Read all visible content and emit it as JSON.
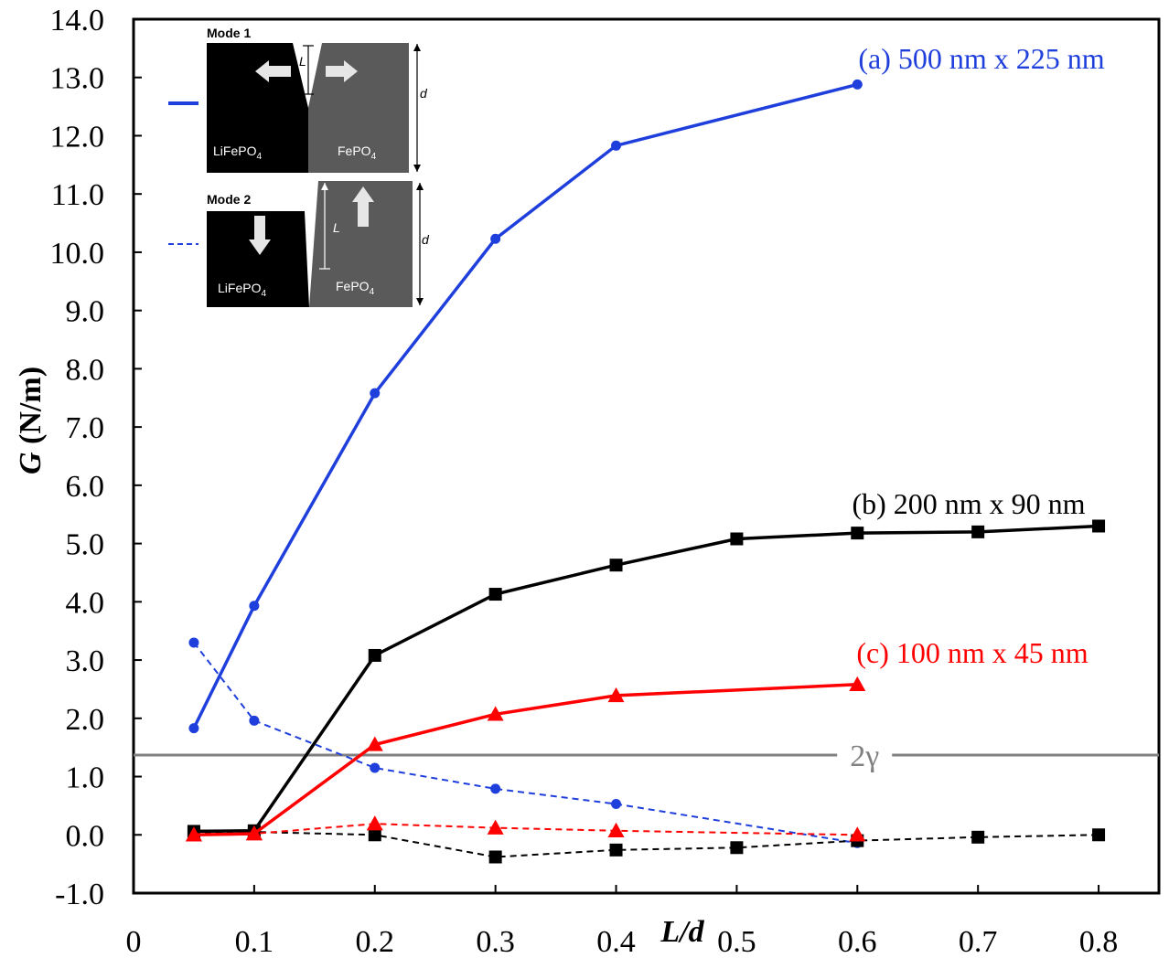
{
  "chart_data": {
    "type": "line",
    "title": "",
    "xlabel_italic": "L/d",
    "ylabel_italic": "G",
    "ylabel_units": " (N/m)",
    "xlim": [
      0,
      0.85
    ],
    "ylim": [
      -1.0,
      14.0
    ],
    "x_ticks": [
      "0",
      "0.1",
      "0.2",
      "0.3",
      "0.4",
      "0.5",
      "0.6",
      "0.7",
      "0.8"
    ],
    "y_ticks": [
      "-1.0",
      "0.0",
      "1.0",
      "2.0",
      "3.0",
      "4.0",
      "5.0",
      "6.0",
      "7.0",
      "8.0",
      "9.0",
      "10.0",
      "11.0",
      "12.0",
      "13.0",
      "14.0"
    ],
    "grid": false,
    "reference_line": {
      "label": "2γ",
      "value": 1.37,
      "color": "#808080"
    },
    "series": [
      {
        "name": "(a) 500 nm x 225 nm",
        "mode": "Mode 1",
        "color": "#1f3fdc",
        "marker": "circle",
        "dash": false,
        "x": [
          0.05,
          0.1,
          0.2,
          0.3,
          0.4,
          0.6
        ],
        "y": [
          1.83,
          3.93,
          7.58,
          10.23,
          11.83,
          12.88
        ]
      },
      {
        "name": "(a) 500 nm x 225 nm",
        "mode": "Mode 2",
        "color": "#1f3fdc",
        "marker": "circle",
        "dash": true,
        "x": [
          0.05,
          0.1,
          0.2,
          0.3,
          0.4,
          0.6
        ],
        "y": [
          3.3,
          1.96,
          1.15,
          0.79,
          0.53,
          -0.14
        ]
      },
      {
        "name": "(b) 200 nm x 90 nm",
        "mode": "Mode 1",
        "color": "#000000",
        "marker": "square",
        "dash": false,
        "x": [
          0.05,
          0.1,
          0.2,
          0.3,
          0.4,
          0.5,
          0.6,
          0.7,
          0.8
        ],
        "y": [
          0.06,
          0.07,
          3.08,
          4.13,
          4.63,
          5.08,
          5.18,
          5.2,
          5.3
        ]
      },
      {
        "name": "(b) 200 nm x 90 nm",
        "mode": "Mode 2",
        "color": "#000000",
        "marker": "square",
        "dash": true,
        "x": [
          0.05,
          0.1,
          0.2,
          0.3,
          0.4,
          0.5,
          0.6,
          0.7,
          0.8
        ],
        "y": [
          0.04,
          0.05,
          0.0,
          -0.38,
          -0.26,
          -0.22,
          -0.1,
          -0.04,
          0.0
        ]
      },
      {
        "name": "(c) 100 nm x 45 nm",
        "mode": "Mode 1",
        "color": "#ff0000",
        "marker": "triangle",
        "dash": false,
        "x": [
          0.05,
          0.1,
          0.2,
          0.3,
          0.4,
          0.6
        ],
        "y": [
          0.0,
          0.02,
          1.55,
          2.07,
          2.39,
          2.58
        ]
      },
      {
        "name": "(c) 100 nm x 45 nm",
        "mode": "Mode 2",
        "color": "#ff0000",
        "marker": "triangle",
        "dash": true,
        "x": [
          0.05,
          0.1,
          0.2,
          0.3,
          0.4,
          0.6
        ],
        "y": [
          0.0,
          0.02,
          0.19,
          0.12,
          0.07,
          0.0
        ]
      }
    ]
  },
  "labels": {
    "a": "(a) 500 nm x 225 nm",
    "b": "(b) 200 nm x 90 nm",
    "c": "(c) 100 nm x 45 nm"
  },
  "inset": {
    "mode1_title": "Mode 1",
    "mode2_title": "Mode 2",
    "left_phase": "LiFePO",
    "right_phase": "FePO",
    "subscript": "4",
    "length_symbol": "L",
    "depth_symbol": "d"
  },
  "colors": {
    "blue": "#1f3fdc",
    "black": "#000000",
    "red": "#ff0000",
    "gray": "#808080"
  }
}
